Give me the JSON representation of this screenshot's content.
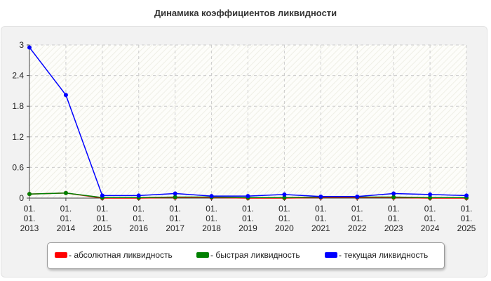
{
  "chart_data": {
    "type": "line",
    "title": "Динамика коэффициентов ликвидности",
    "xlabel": "",
    "ylabel": "",
    "categories": [
      "01.01.2013",
      "01.01.2014",
      "01.01.2015",
      "01.01.2016",
      "01.01.2017",
      "01.01.2018",
      "01.01.2019",
      "01.01.2020",
      "01.01.2021",
      "01.01.2022",
      "01.01.2023",
      "01.01.2024",
      "01.01.2025"
    ],
    "category_lines": [
      [
        "01.",
        "01.",
        "2013"
      ],
      [
        "01.",
        "01.",
        "2014"
      ],
      [
        "01.",
        "01.",
        "2015"
      ],
      [
        "01.",
        "01.",
        "2016"
      ],
      [
        "01.",
        "01.",
        "2017"
      ],
      [
        "01.",
        "01.",
        "2018"
      ],
      [
        "01.",
        "01.",
        "2019"
      ],
      [
        "01.",
        "01.",
        "2020"
      ],
      [
        "01.",
        "01.",
        "2021"
      ],
      [
        "01.",
        "01.",
        "2022"
      ],
      [
        "01.",
        "01.",
        "2023"
      ],
      [
        "01.",
        "01.",
        "2024"
      ],
      [
        "01.",
        "01.",
        "2025"
      ]
    ],
    "ylim": [
      0,
      3
    ],
    "yticks": [
      "0",
      "0.6",
      "1.2",
      "1.8",
      "2.4",
      "3"
    ],
    "ytick_values": [
      0,
      0.6,
      1.2,
      1.8,
      2.4,
      3
    ],
    "grid": true,
    "legend_position": "bottom",
    "series": [
      {
        "name": "- абсолютная ликвидность",
        "color": "#ff0000",
        "values": [
          0.08,
          0.1,
          0.0,
          0.0,
          0.01,
          0.01,
          0.0,
          0.0,
          0.01,
          0.01,
          0.01,
          0.0,
          0.0
        ]
      },
      {
        "name": "- быстрая ликвидность",
        "color": "#008000",
        "values": [
          0.08,
          0.1,
          0.01,
          0.01,
          0.02,
          0.02,
          0.01,
          0.01,
          0.02,
          0.02,
          0.02,
          0.01,
          0.01
        ]
      },
      {
        "name": "- текущая ликвидность",
        "color": "#0000ff",
        "values": [
          2.95,
          2.02,
          0.05,
          0.05,
          0.09,
          0.04,
          0.04,
          0.07,
          0.03,
          0.03,
          0.09,
          0.07,
          0.05
        ]
      }
    ]
  }
}
